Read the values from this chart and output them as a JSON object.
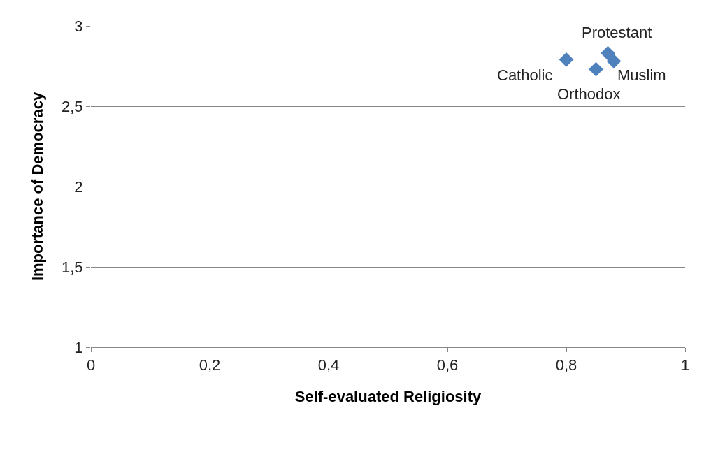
{
  "chart_data": {
    "type": "scatter",
    "xlabel": "Self-evaluated Religiosity",
    "ylabel": "Importance of Democracy",
    "x": [
      0.8,
      0.85,
      0.87,
      0.88
    ],
    "series": [
      {
        "color": "#4f81bd",
        "values": [
          2.79,
          2.73,
          2.83,
          2.78
        ]
      }
    ],
    "marker": "diamond",
    "grid": "y",
    "xlim": [
      0,
      1
    ],
    "xticks": [
      {
        "value": 0,
        "label": "0"
      },
      {
        "value": 0.2,
        "label": "0,2"
      },
      {
        "value": 0.4,
        "label": "0,4"
      },
      {
        "value": 0.6,
        "label": "0,6"
      },
      {
        "value": 0.8,
        "label": "0,8"
      },
      {
        "value": 1,
        "label": "1"
      }
    ],
    "ylim": [
      1,
      3
    ],
    "yticks": [
      {
        "value": 1,
        "label": "1"
      },
      {
        "value": 1.5,
        "label": "1,5"
      },
      {
        "value": 2,
        "label": "2"
      },
      {
        "value": 2.5,
        "label": "2,5"
      },
      {
        "value": 3,
        "label": "3"
      }
    ],
    "annotations": [
      {
        "text": "Catholic",
        "x": 0.8,
        "y": 2.79
      },
      {
        "text": "Orthodox",
        "x": 0.85,
        "y": 2.73
      },
      {
        "text": "Protestant",
        "x": 0.87,
        "y": 2.83
      },
      {
        "text": "Muslim",
        "x": 0.88,
        "y": 2.78
      }
    ]
  }
}
